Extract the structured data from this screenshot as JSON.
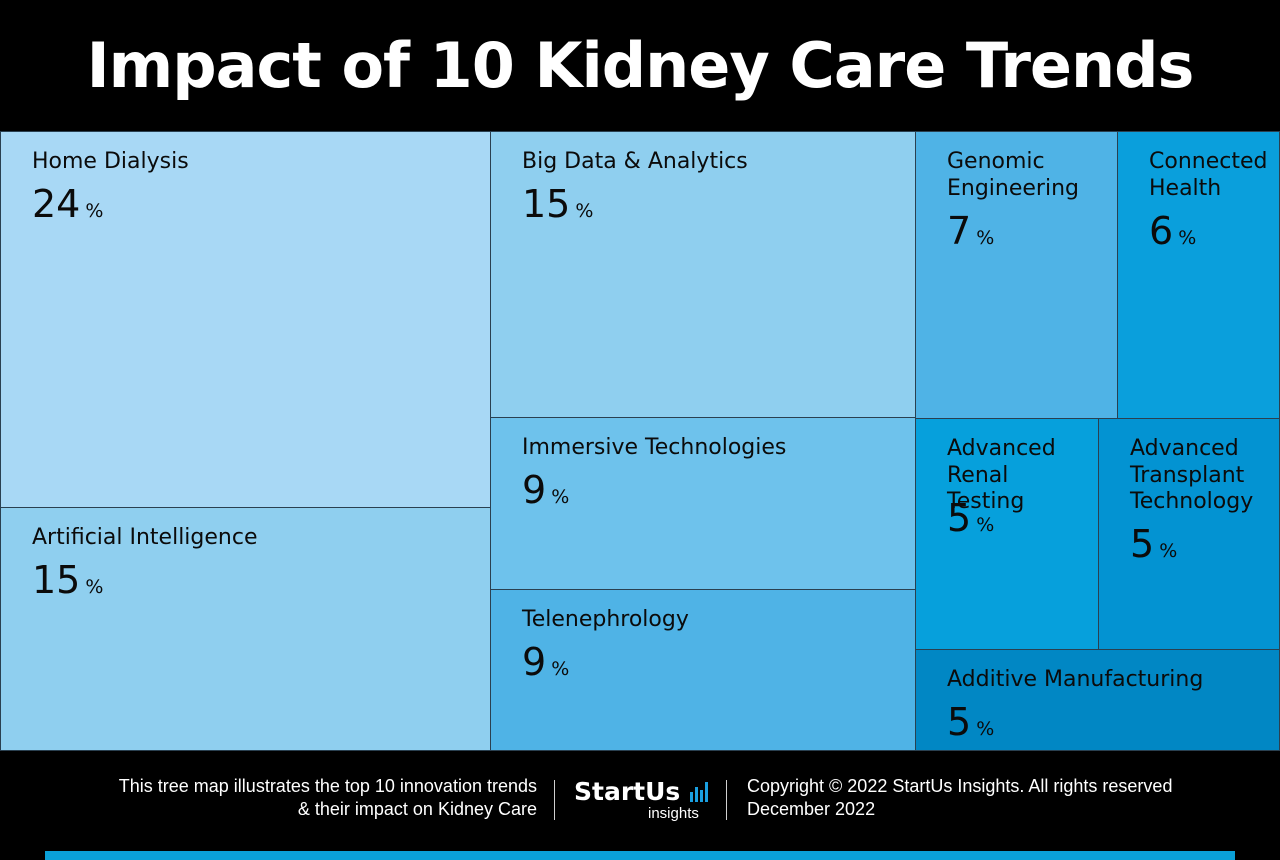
{
  "title": "Impact of 10 Kidney Care Trends",
  "chart_data": {
    "type": "treemap",
    "title": "Impact of 10 Kidney Care Trends",
    "unit": "%",
    "items": [
      {
        "label": "Home Dialysis",
        "value": 24,
        "color": "#a8d8f5"
      },
      {
        "label": "Artificial Intelligence",
        "value": 15,
        "color": "#8fcfef"
      },
      {
        "label": "Big Data & Analytics",
        "value": 15,
        "color": "#8fcfef"
      },
      {
        "label": "Immersive Technologies",
        "value": 9,
        "color": "#6ec2ec"
      },
      {
        "label": "Telenephrology",
        "value": 9,
        "color": "#4fb3e6"
      },
      {
        "label": "Genomic\nEngineering",
        "value": 7,
        "color": "#4fb3e6"
      },
      {
        "label": "Connected\nHealth",
        "value": 6,
        "color": "#0a9fdc"
      },
      {
        "label": "Advanced\nRenal Testing",
        "value": 5,
        "color": "#06a0dc"
      },
      {
        "label": "Advanced\nTransplant\nTechnology",
        "value": 5,
        "color": "#0393d2"
      },
      {
        "label": "Additive Manufacturing",
        "value": 5,
        "color": "#0187c4"
      }
    ]
  },
  "footer": {
    "description": "This tree map illustrates the top 10 innovation trends\n& their impact on Kidney Care",
    "logo_main": "StartUs",
    "logo_sub": "insights",
    "logo_color": "#1a9fe0",
    "copyright": "Copyright © 2022 StartUs Insights. All rights reserved",
    "date": "December 2022"
  }
}
